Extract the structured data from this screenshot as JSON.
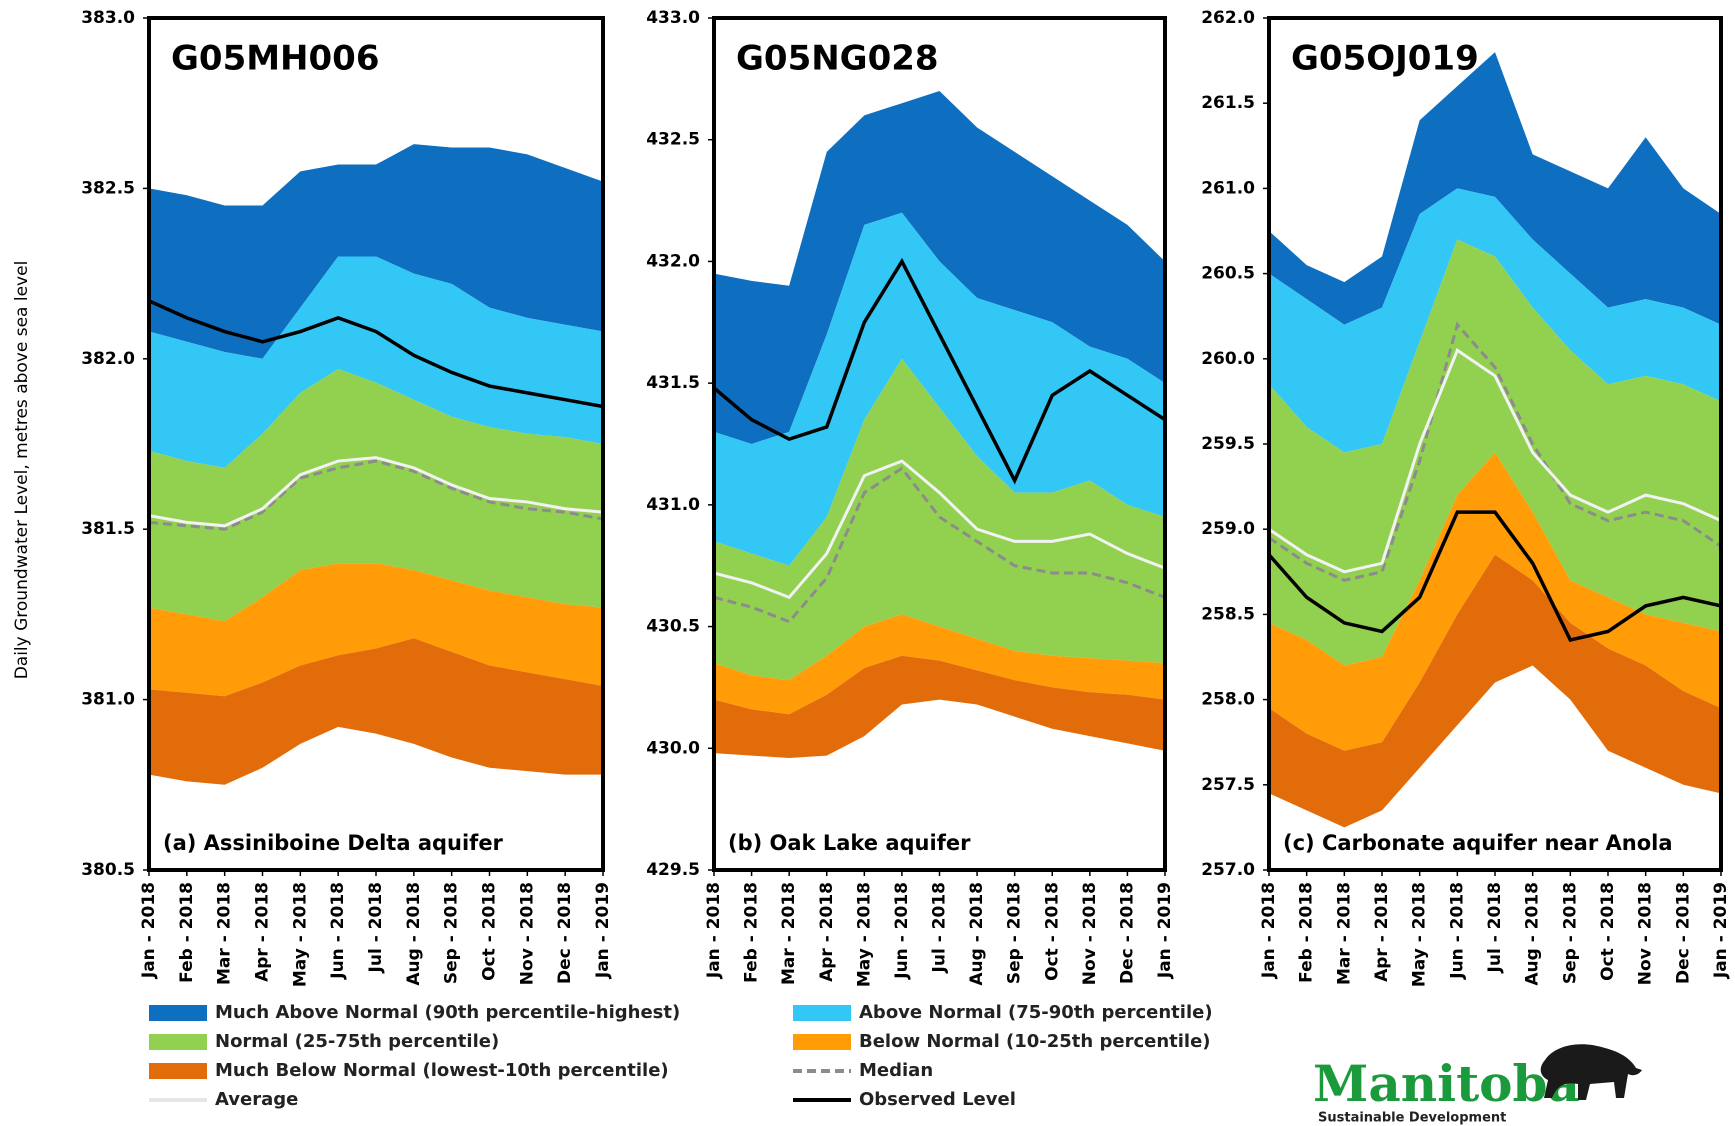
{
  "y_label": "Daily Groundwater Level, metres above sea level",
  "legend": [
    {
      "name": "Much Above Normal (90th percentile-highest)",
      "color": "#0e6fc1",
      "style": "band"
    },
    {
      "name": "Above Normal (75-90th percentile)",
      "color": "#33c7f5",
      "style": "band"
    },
    {
      "name": "Normal (25-75th percentile)",
      "color": "#92d050",
      "style": "band"
    },
    {
      "name": "Below Normal (10-25th percentile)",
      "color": "#ff9c08",
      "style": "band"
    },
    {
      "name": "Much Below Normal (lowest-10th percentile)",
      "color": "#e36c0a",
      "style": "band"
    },
    {
      "name": "Median",
      "color": "#8c8c8c",
      "style": "dashed"
    },
    {
      "name": "Average",
      "color": "#f2f2f2",
      "style": "line"
    },
    {
      "name": "Observed Level",
      "color": "#000000",
      "style": "line"
    }
  ],
  "logo": {
    "name": "Manitoba",
    "tagline": "Sustainable Development"
  },
  "chart_data": [
    {
      "type": "band",
      "title": "G05MH006",
      "subtitle": "(a) Assiniboine Delta aquifer",
      "categories": [
        "Jan - 2018",
        "Feb - 2018",
        "Mar - 2018",
        "Apr - 2018",
        "May - 2018",
        "Jun - 2018",
        "Jul - 2018",
        "Aug - 2018",
        "Sep - 2018",
        "Oct - 2018",
        "Nov - 2018",
        "Dec - 2018",
        "Jan - 2019"
      ],
      "ylim": [
        380.5,
        383
      ],
      "yticks": [
        380.5,
        {
          "value": 381,
          "label": "381.0"
        },
        381.5,
        {
          "value": 382,
          "label": "382.0"
        },
        382.5,
        {
          "value": 383,
          "label": "383.0"
        }
      ],
      "floor": [
        380.78,
        380.76,
        380.75,
        380.8,
        380.87,
        380.92,
        380.9,
        380.87,
        380.83,
        380.8,
        380.79,
        380.78,
        380.78
      ],
      "series": [
        {
          "values": [
            382.5,
            382.48,
            382.45,
            382.45,
            382.55,
            382.57,
            382.57,
            382.63,
            382.62,
            382.62,
            382.6,
            382.56,
            382.52
          ]
        },
        {
          "values": [
            382.08,
            382.05,
            382.02,
            382.0,
            382.15,
            382.3,
            382.3,
            382.25,
            382.22,
            382.15,
            382.12,
            382.1,
            382.08
          ]
        },
        {
          "values": [
            381.73,
            381.7,
            381.68,
            381.78,
            381.9,
            381.97,
            381.93,
            381.88,
            381.83,
            381.8,
            381.78,
            381.77,
            381.75
          ]
        },
        {
          "values": [
            381.27,
            381.25,
            381.23,
            381.3,
            381.38,
            381.4,
            381.4,
            381.38,
            381.35,
            381.32,
            381.3,
            381.28,
            381.27
          ]
        },
        {
          "values": [
            381.03,
            381.02,
            381.01,
            381.05,
            381.1,
            381.13,
            381.15,
            381.18,
            381.14,
            381.1,
            381.08,
            381.06,
            381.04
          ]
        },
        {
          "values": [
            381.52,
            381.51,
            381.5,
            381.55,
            381.65,
            381.68,
            381.7,
            381.67,
            381.62,
            381.58,
            381.56,
            381.55,
            381.53
          ]
        },
        {
          "values": [
            381.54,
            381.52,
            381.51,
            381.56,
            381.66,
            381.7,
            381.71,
            381.68,
            381.63,
            381.59,
            381.58,
            381.56,
            381.55
          ]
        },
        {
          "values": [
            382.17,
            382.12,
            382.08,
            382.05,
            382.08,
            382.12,
            382.08,
            382.01,
            381.96,
            381.92,
            381.9,
            381.88,
            381.86
          ]
        }
      ]
    },
    {
      "type": "band",
      "title": "G05NG028",
      "subtitle": "(b) Oak Lake aquifer",
      "categories": [
        "Jan - 2018",
        "Feb - 2018",
        "Mar - 2018",
        "Apr - 2018",
        "May - 2018",
        "Jun - 2018",
        "Jul - 2018",
        "Aug - 2018",
        "Sep - 2018",
        "Oct - 2018",
        "Nov - 2018",
        "Dec - 2018",
        "Jan - 2019"
      ],
      "ylim": [
        429.5,
        433
      ],
      "yticks": [
        429.5,
        {
          "value": 430,
          "label": "430.0"
        },
        430.5,
        {
          "value": 431,
          "label": "431.0"
        },
        431.5,
        {
          "value": 432,
          "label": "432.0"
        },
        432.5,
        {
          "value": 433,
          "label": "433.0"
        }
      ],
      "floor": [
        429.98,
        429.97,
        429.96,
        429.97,
        430.05,
        430.18,
        430.2,
        430.18,
        430.13,
        430.08,
        430.05,
        430.02,
        429.99
      ],
      "series": [
        {
          "values": [
            431.95,
            431.92,
            431.9,
            432.45,
            432.6,
            432.65,
            432.7,
            432.55,
            432.45,
            432.35,
            432.25,
            432.15,
            432.0
          ]
        },
        {
          "values": [
            431.3,
            431.25,
            431.3,
            431.7,
            432.15,
            432.2,
            432.0,
            431.85,
            431.8,
            431.75,
            431.65,
            431.6,
            431.5
          ]
        },
        {
          "values": [
            430.85,
            430.8,
            430.75,
            430.95,
            431.35,
            431.6,
            431.4,
            431.2,
            431.05,
            431.05,
            431.1,
            431.0,
            430.95
          ]
        },
        {
          "values": [
            430.35,
            430.3,
            430.28,
            430.38,
            430.5,
            430.55,
            430.5,
            430.45,
            430.4,
            430.38,
            430.37,
            430.36,
            430.35
          ]
        },
        {
          "values": [
            430.2,
            430.16,
            430.14,
            430.22,
            430.33,
            430.38,
            430.36,
            430.32,
            430.28,
            430.25,
            430.23,
            430.22,
            430.2
          ]
        },
        {
          "values": [
            430.62,
            430.58,
            430.52,
            430.7,
            431.05,
            431.15,
            430.95,
            430.85,
            430.75,
            430.72,
            430.72,
            430.68,
            430.62
          ]
        },
        {
          "values": [
            430.72,
            430.68,
            430.62,
            430.8,
            431.12,
            431.18,
            431.05,
            430.9,
            430.85,
            430.85,
            430.88,
            430.8,
            430.74
          ]
        },
        {
          "values": [
            431.48,
            431.35,
            431.27,
            431.32,
            431.75,
            432.0,
            431.7,
            431.4,
            431.1,
            431.45,
            431.55,
            431.45,
            431.35
          ]
        }
      ]
    },
    {
      "type": "band",
      "title": "G05OJ019",
      "subtitle": "(c) Carbonate aquifer near Anola",
      "categories": [
        "Jan - 2018",
        "Feb - 2018",
        "Mar - 2018",
        "Apr - 2018",
        "May - 2018",
        "Jun - 2018",
        "Jul - 2018",
        "Aug - 2018",
        "Sep - 2018",
        "Oct - 2018",
        "Nov - 2018",
        "Dec - 2018",
        "Jan - 2019"
      ],
      "ylim": [
        257,
        262
      ],
      "yticks": [
        {
          "value": 257,
          "label": "257.0"
        },
        257.5,
        {
          "value": 258,
          "label": "258.0"
        },
        258.5,
        {
          "value": 259,
          "label": "259.0"
        },
        259.5,
        {
          "value": 260,
          "label": "260.0"
        },
        260.5,
        {
          "value": 261,
          "label": "261.0"
        },
        261.5,
        {
          "value": 262,
          "label": "262.0"
        }
      ],
      "floor": [
        257.45,
        257.35,
        257.25,
        257.35,
        257.6,
        257.85,
        258.1,
        258.2,
        258.0,
        257.7,
        257.6,
        257.5,
        257.45
      ],
      "series": [
        {
          "values": [
            260.75,
            260.55,
            260.45,
            260.6,
            261.4,
            261.6,
            261.8,
            261.2,
            261.1,
            261.0,
            261.3,
            261.0,
            260.85
          ]
        },
        {
          "values": [
            260.5,
            260.35,
            260.2,
            260.3,
            260.85,
            261.0,
            260.95,
            260.7,
            260.5,
            260.3,
            260.35,
            260.3,
            260.2
          ]
        },
        {
          "values": [
            259.85,
            259.6,
            259.45,
            259.5,
            260.1,
            260.7,
            260.6,
            260.3,
            260.05,
            259.85,
            259.9,
            259.85,
            259.75
          ]
        },
        {
          "values": [
            258.45,
            258.35,
            258.2,
            258.25,
            258.7,
            259.2,
            259.45,
            259.1,
            258.7,
            258.6,
            258.5,
            258.45,
            258.4
          ]
        },
        {
          "values": [
            257.95,
            257.8,
            257.7,
            257.75,
            258.1,
            258.5,
            258.85,
            258.7,
            258.45,
            258.3,
            258.2,
            258.05,
            257.95
          ]
        },
        {
          "values": [
            258.95,
            258.8,
            258.7,
            258.75,
            259.4,
            260.2,
            259.95,
            259.5,
            259.15,
            259.05,
            259.1,
            259.05,
            258.9
          ]
        },
        {
          "values": [
            259.0,
            258.85,
            258.75,
            258.8,
            259.5,
            260.05,
            259.9,
            259.45,
            259.2,
            259.1,
            259.2,
            259.15,
            259.05
          ]
        },
        {
          "values": [
            258.85,
            258.6,
            258.45,
            258.4,
            258.6,
            259.1,
            259.1,
            258.8,
            258.35,
            258.4,
            258.55,
            258.6,
            258.55
          ]
        }
      ]
    }
  ]
}
